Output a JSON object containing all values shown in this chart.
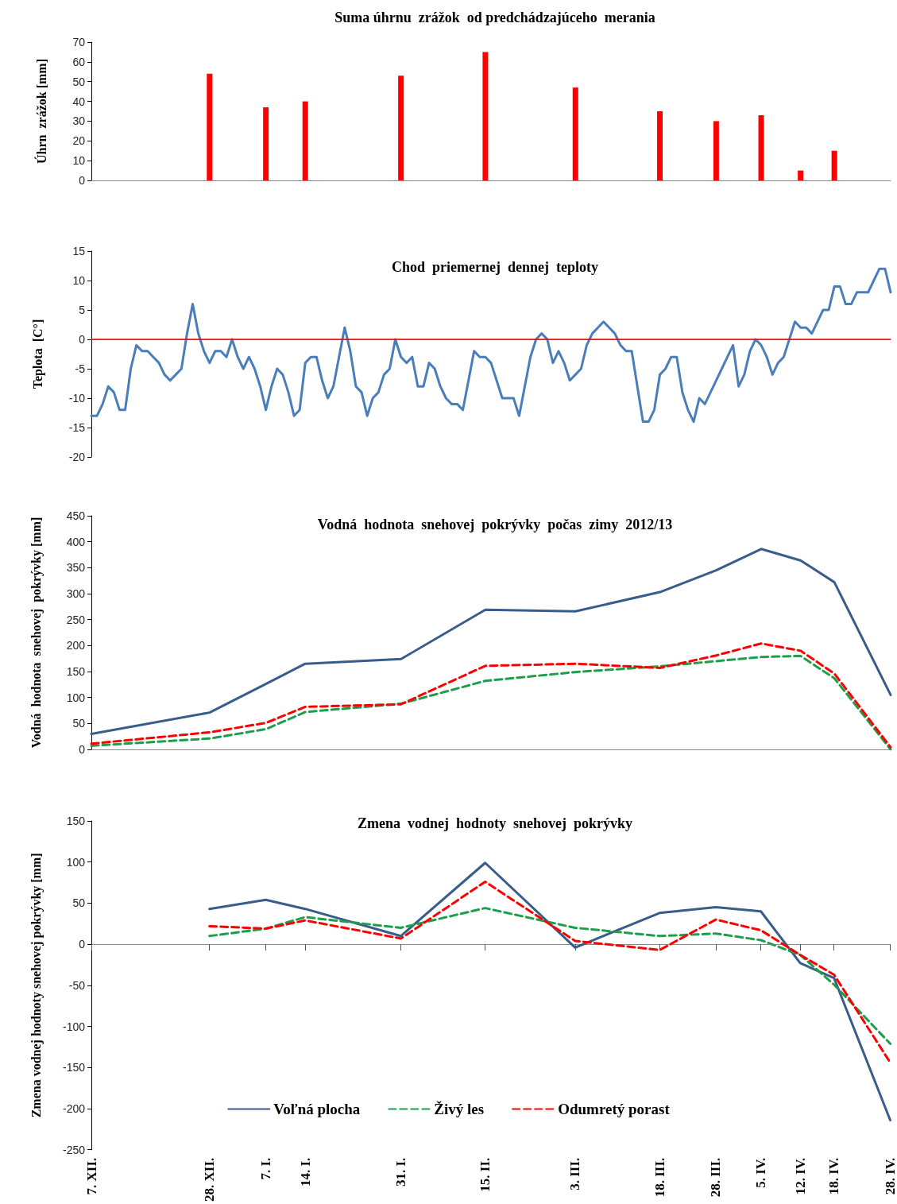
{
  "chart_data": [
    {
      "type": "bar",
      "title": "Suma úhrnu  zrážok  od predchádzajúceho  merania",
      "ylabel": "Úhrn  zrážok [mm]",
      "x": [
        "2012-12-28",
        "2013-01-07",
        "2013-01-14",
        "2013-01-31",
        "2013-02-15",
        "2013-03-03",
        "2013-03-18",
        "2013-03-28",
        "2013-04-05",
        "2013-04-12",
        "2013-04-18"
      ],
      "values": [
        54,
        37,
        40,
        53,
        65,
        47,
        35,
        30,
        33,
        5,
        15
      ],
      "color": "#ff0000",
      "xlim": [
        "2012-12-07",
        "2013-04-28"
      ],
      "ylim": [
        0,
        70
      ],
      "yticks": [
        0,
        10,
        20,
        30,
        40,
        50,
        60,
        70
      ],
      "tick_labels": "y"
    },
    {
      "type": "line",
      "title": "Chod  priemernej  dennej  teploty",
      "ylabel": "Teplota  [C°]",
      "x": [
        "2012-12-07",
        "2012-12-08",
        "2012-12-09",
        "2012-12-10",
        "2012-12-11",
        "2012-12-12",
        "2012-12-13",
        "2012-12-14",
        "2012-12-15",
        "2012-12-16",
        "2012-12-17",
        "2012-12-18",
        "2012-12-19",
        "2012-12-20",
        "2012-12-21",
        "2012-12-22",
        "2012-12-23",
        "2012-12-24",
        "2012-12-25",
        "2012-12-26",
        "2012-12-27",
        "2012-12-28",
        "2012-12-29",
        "2012-12-30",
        "2012-12-31",
        "2013-01-01",
        "2013-01-02",
        "2013-01-03",
        "2013-01-04",
        "2013-01-05",
        "2013-01-06",
        "2013-01-07",
        "2013-01-08",
        "2013-01-09",
        "2013-01-10",
        "2013-01-11",
        "2013-01-12",
        "2013-01-13",
        "2013-01-14",
        "2013-01-15",
        "2013-01-16",
        "2013-01-17",
        "2013-01-18",
        "2013-01-19",
        "2013-01-20",
        "2013-01-21",
        "2013-01-22",
        "2013-01-23",
        "2013-01-24",
        "2013-01-25",
        "2013-01-26",
        "2013-01-27",
        "2013-01-28",
        "2013-01-29",
        "2013-01-30",
        "2013-01-31",
        "2013-02-01",
        "2013-02-02",
        "2013-02-03",
        "2013-02-04",
        "2013-02-05",
        "2013-02-06",
        "2013-02-07",
        "2013-02-08",
        "2013-02-09",
        "2013-02-10",
        "2013-02-11",
        "2013-02-12",
        "2013-02-13",
        "2013-02-14",
        "2013-02-15",
        "2013-02-16",
        "2013-02-17",
        "2013-02-18",
        "2013-02-19",
        "2013-02-20",
        "2013-02-21",
        "2013-02-22",
        "2013-02-23",
        "2013-02-24",
        "2013-02-25",
        "2013-02-26",
        "2013-02-27",
        "2013-02-28",
        "2013-03-01",
        "2013-03-02",
        "2013-03-03",
        "2013-03-04",
        "2013-03-05",
        "2013-03-06",
        "2013-03-07",
        "2013-03-08",
        "2013-03-09",
        "2013-03-10",
        "2013-03-11",
        "2013-03-12",
        "2013-03-13",
        "2013-03-14",
        "2013-03-15",
        "2013-03-16",
        "2013-03-17",
        "2013-03-18",
        "2013-03-19",
        "2013-03-20",
        "2013-03-21",
        "2013-03-22",
        "2013-03-23",
        "2013-03-24",
        "2013-03-25",
        "2013-03-26",
        "2013-03-27",
        "2013-03-28",
        "2013-03-29",
        "2013-03-30",
        "2013-03-31",
        "2013-04-01",
        "2013-04-02",
        "2013-04-03",
        "2013-04-04",
        "2013-04-05",
        "2013-04-06",
        "2013-04-07",
        "2013-04-08",
        "2013-04-09",
        "2013-04-10",
        "2013-04-11",
        "2013-04-12",
        "2013-04-13",
        "2013-04-14",
        "2013-04-15",
        "2013-04-16",
        "2013-04-17",
        "2013-04-18",
        "2013-04-19",
        "2013-04-20",
        "2013-04-21",
        "2013-04-22",
        "2013-04-23",
        "2013-04-24",
        "2013-04-25",
        "2013-04-26",
        "2013-04-27",
        "2013-04-28"
      ],
      "values": [
        -13,
        -13,
        -11,
        -8,
        -9,
        -12,
        -12,
        -5,
        -1,
        -2,
        -2,
        -3,
        -4,
        -6,
        -7,
        -6,
        -5,
        1,
        6,
        1,
        -2,
        -4,
        -2,
        -2,
        -3,
        0,
        -3,
        -5,
        -3,
        -5,
        -8,
        -12,
        -8,
        -5,
        -6,
        -9,
        -13,
        -12,
        -4,
        -3,
        -3,
        -7,
        -10,
        -8,
        -3,
        2,
        -2,
        -8,
        -9,
        -13,
        -10,
        -9,
        -6,
        -5,
        0,
        -3,
        -4,
        -3,
        -8,
        -8,
        -4,
        -5,
        -8,
        -10,
        -11,
        -11,
        -12,
        -7,
        -2,
        -3,
        -3,
        -4,
        -7,
        -10,
        -10,
        -10,
        -13,
        -8,
        -3,
        0,
        1,
        0,
        -4,
        -2,
        -4,
        -7,
        -6,
        -5,
        -1,
        1,
        2,
        3,
        2,
        1,
        -1,
        -2,
        -2,
        -8,
        -14,
        -14,
        -12,
        -6,
        -5,
        -3,
        -3,
        -9,
        -12,
        -14,
        -10,
        -11,
        -9,
        -7,
        -5,
        -3,
        -1,
        -8,
        -6,
        -2,
        0,
        -1,
        -3,
        -6,
        -4,
        -3,
        0,
        3,
        2,
        2,
        1,
        3,
        5,
        5,
        9,
        9,
        6,
        6,
        8,
        8,
        8,
        10,
        12,
        12,
        8
      ],
      "color": "#4a7ebb",
      "marker": "none",
      "xlim": [
        "2012-12-07",
        "2013-04-28"
      ],
      "ylim": [
        -20,
        15
      ],
      "yticks": [
        -20,
        -15,
        -10,
        -5,
        0,
        5,
        10,
        15
      ],
      "tick_labels": "y",
      "ref_lines": [
        {
          "axis": "y",
          "value": 0,
          "color": "#ff0000"
        }
      ]
    },
    {
      "type": "line",
      "title": "Vodná  hodnota  snehovej  pokrývky  počas  zimy  2012/13",
      "ylabel": "Vodná  hodnota  snehovej  pokrývky [mm]",
      "x": [
        "2012-12-07",
        "2012-12-28",
        "2013-01-07",
        "2013-01-14",
        "2013-01-31",
        "2013-02-15",
        "2013-03-03",
        "2013-03-18",
        "2013-03-28",
        "2013-04-05",
        "2013-04-12",
        "2013-04-18",
        "2013-04-28"
      ],
      "series": [
        {
          "color": "#385d8a",
          "line_style": "solid",
          "values": [
            30,
            71,
            126,
            165,
            174,
            269,
            266,
            303,
            345,
            386,
            364,
            322,
            105
          ]
        },
        {
          "color": "#1e9e4a",
          "line_style": "dashed",
          "values": [
            7,
            21,
            39,
            72,
            88,
            132,
            149,
            160,
            170,
            178,
            180,
            137,
            0
          ]
        },
        {
          "color": "#ff0000",
          "line_style": "dashed",
          "values": [
            11,
            33,
            51,
            82,
            87,
            161,
            165,
            157,
            181,
            204,
            190,
            146,
            4
          ]
        }
      ],
      "marker": "none",
      "xlim": [
        "2012-12-07",
        "2013-04-28"
      ],
      "ylim": [
        0,
        450
      ],
      "yticks": [
        0,
        50,
        100,
        150,
        200,
        250,
        300,
        350,
        400,
        450
      ],
      "tick_labels": "y"
    },
    {
      "type": "line",
      "title": "Zmena  vodnej  hodnoty  snehovej  pokrývky",
      "ylabel": "Zmena vodnej hodnoty snehovej pokrývky [mm]",
      "x": [
        "2012-12-28",
        "2013-01-07",
        "2013-01-14",
        "2013-01-31",
        "2013-02-15",
        "2013-03-03",
        "2013-03-18",
        "2013-03-28",
        "2013-04-05",
        "2013-04-12",
        "2013-04-18",
        "2013-04-28"
      ],
      "series": [
        {
          "name": "Voľná plocha",
          "color": "#385d8a",
          "line_style": "solid",
          "values": [
            43,
            54,
            43,
            10,
            99,
            -4,
            38,
            45,
            40,
            -23,
            -41,
            -214
          ]
        },
        {
          "name": "Živý les",
          "color": "#1e9e4a",
          "line_style": "dashed",
          "values": [
            10,
            19,
            33,
            20,
            44,
            20,
            10,
            13,
            5,
            -13,
            -49,
            -121
          ]
        },
        {
          "name": "Odumretý porast",
          "color": "#ff0000",
          "line_style": "dashed",
          "values": [
            22,
            19,
            29,
            7,
            76,
            4,
            -7,
            30,
            17,
            -13,
            -37,
            -144
          ]
        }
      ],
      "marker": "none",
      "legend": "bottom",
      "xlim": [
        "2012-12-07",
        "2013-04-28"
      ],
      "xticks": [
        {
          "value": "2012-12-07",
          "label": "7. XII."
        },
        {
          "value": "2012-12-28",
          "label": "28. XII."
        },
        {
          "value": "2013-01-07",
          "label": "7. I."
        },
        {
          "value": "2013-01-14",
          "label": "14. I."
        },
        {
          "value": "2013-01-31",
          "label": "31. I."
        },
        {
          "value": "2013-02-15",
          "label": "15. II."
        },
        {
          "value": "2013-03-03",
          "label": "3. III."
        },
        {
          "value": "2013-03-18",
          "label": "18. III."
        },
        {
          "value": "2013-03-28",
          "label": "28. III."
        },
        {
          "value": "2013-04-05",
          "label": "5. IV."
        },
        {
          "value": "2013-04-12",
          "label": "12. IV."
        },
        {
          "value": "2013-04-18",
          "label": "18. IV."
        },
        {
          "value": "2013-04-28",
          "label": "28. IV."
        }
      ],
      "ylim": [
        -250,
        150
      ],
      "yticks": [
        -250,
        -200,
        -150,
        -100,
        -50,
        0,
        50,
        100,
        150
      ]
    }
  ]
}
